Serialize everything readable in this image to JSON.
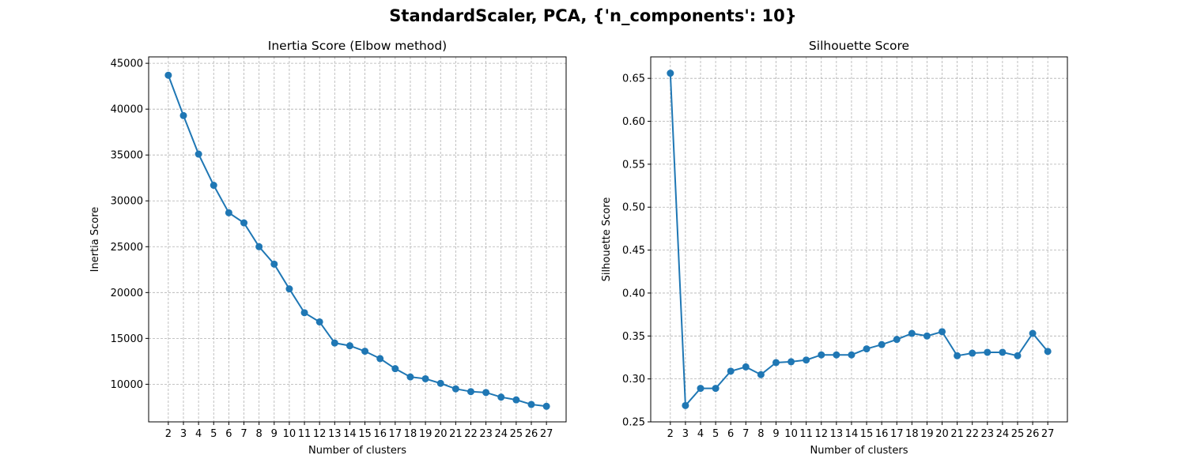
{
  "figure": {
    "suptitle": "StandardScaler, PCA, {'n_components': 10}"
  },
  "chart_data": [
    {
      "type": "line",
      "title": "Inertia Score (Elbow method)",
      "xlabel": "Number of clusters",
      "ylabel": "Inertia Score",
      "x": [
        2,
        3,
        4,
        5,
        6,
        7,
        8,
        9,
        10,
        11,
        12,
        13,
        14,
        15,
        16,
        17,
        18,
        19,
        20,
        21,
        22,
        23,
        24,
        25,
        26,
        27
      ],
      "y": [
        43700,
        39300,
        35100,
        31700,
        28700,
        27600,
        25000,
        23100,
        20400,
        17800,
        16800,
        14500,
        14200,
        13600,
        12800,
        11700,
        10800,
        10600,
        10100,
        9500,
        9200,
        9100,
        8600,
        8300,
        7800,
        7600
      ],
      "xlim": [
        0.7,
        28.3
      ],
      "ylim": [
        5900,
        45700
      ],
      "yticks": [
        10000,
        15000,
        20000,
        25000,
        30000,
        35000,
        40000,
        45000
      ],
      "ytick_labels": [
        "10000",
        "15000",
        "20000",
        "25000",
        "30000",
        "35000",
        "40000",
        "45000"
      ],
      "grid": true,
      "color": "#1f77b4"
    },
    {
      "type": "line",
      "title": "Silhouette Score",
      "xlabel": "Number of clusters",
      "ylabel": "Silhouette Score",
      "x": [
        2,
        3,
        4,
        5,
        6,
        7,
        8,
        9,
        10,
        11,
        12,
        13,
        14,
        15,
        16,
        17,
        18,
        19,
        20,
        21,
        22,
        23,
        24,
        25,
        26,
        27
      ],
      "y": [
        0.656,
        0.269,
        0.289,
        0.289,
        0.309,
        0.314,
        0.305,
        0.319,
        0.32,
        0.322,
        0.328,
        0.328,
        0.328,
        0.335,
        0.34,
        0.346,
        0.353,
        0.35,
        0.355,
        0.327,
        0.33,
        0.331,
        0.331,
        0.327,
        0.353,
        0.332
      ],
      "xlim": [
        0.7,
        28.3
      ],
      "ylim": [
        0.25,
        0.675
      ],
      "yticks": [
        0.25,
        0.3,
        0.35,
        0.4,
        0.45,
        0.5,
        0.55,
        0.6,
        0.65
      ],
      "ytick_labels": [
        "0.25",
        "0.30",
        "0.35",
        "0.40",
        "0.45",
        "0.50",
        "0.55",
        "0.60",
        "0.65"
      ],
      "grid": true,
      "color": "#1f77b4"
    }
  ]
}
